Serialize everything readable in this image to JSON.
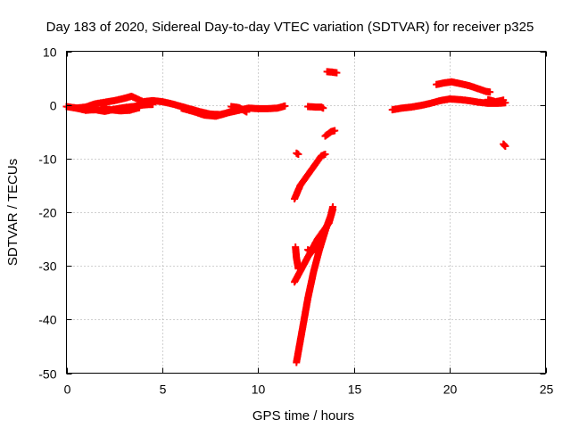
{
  "chart_data": {
    "type": "scatter",
    "title": "Day 183 of 2020, Sidereal Day-to-day VTEC variation (SDTVAR) for receiver p325",
    "xlabel": "GPS time / hours",
    "ylabel": "SDTVAR / TECUs",
    "xlim": [
      0,
      25
    ],
    "ylim": [
      -50,
      10
    ],
    "xticks": [
      0,
      5,
      10,
      15,
      20,
      25
    ],
    "yticks": [
      -50,
      -40,
      -30,
      -20,
      -10,
      0,
      10
    ],
    "grid": true,
    "marker": "+",
    "color": "#ff0000",
    "series": [
      {
        "name": "SDTVAR",
        "tracks": [
          [
            [
              0.0,
              -0.3
            ],
            [
              0.5,
              -0.6
            ],
            [
              1.0,
              -0.4
            ],
            [
              1.5,
              0.2
            ],
            [
              2.0,
              0.5
            ],
            [
              2.5,
              0.8
            ],
            [
              3.0,
              1.2
            ],
            [
              3.4,
              1.6
            ],
            [
              4.0,
              0.6
            ],
            [
              4.5,
              0.8
            ],
            [
              5.0,
              0.6
            ],
            [
              5.5,
              0.2
            ],
            [
              6.0,
              -0.3
            ],
            [
              6.5,
              -0.8
            ],
            [
              7.0,
              -1.3
            ],
            [
              7.5,
              -1.7
            ],
            [
              8.0,
              -1.8
            ],
            [
              8.5,
              -1.4
            ],
            [
              9.0,
              -1.0
            ],
            [
              9.5,
              -0.6
            ],
            [
              10.0,
              -0.7
            ],
            [
              10.5,
              -0.7
            ],
            [
              11.0,
              -0.6
            ],
            [
              11.4,
              -0.2
            ]
          ],
          [
            [
              0.4,
              -0.5
            ],
            [
              1.0,
              -1.0
            ],
            [
              1.5,
              -0.9
            ],
            [
              2.0,
              -1.2
            ],
            [
              2.5,
              -0.8
            ],
            [
              3.0,
              -0.5
            ],
            [
              3.5,
              -0.3
            ],
            [
              4.0,
              0.0
            ],
            [
              4.5,
              0.1
            ]
          ],
          [
            [
              1.8,
              -0.6
            ],
            [
              2.3,
              -0.9
            ],
            [
              2.8,
              -1.1
            ],
            [
              3.3,
              -1.0
            ],
            [
              3.8,
              -0.5
            ]
          ],
          [
            [
              6.0,
              -0.6
            ],
            [
              6.6,
              -1.2
            ],
            [
              7.2,
              -1.9
            ],
            [
              7.8,
              -2.1
            ],
            [
              8.3,
              -1.6
            ],
            [
              8.8,
              -0.9
            ],
            [
              9.3,
              -0.8
            ]
          ],
          [
            [
              8.6,
              -0.3
            ],
            [
              9.0,
              -0.5
            ],
            [
              9.4,
              -1.3
            ]
          ],
          [
            [
              11.9,
              -17.5
            ],
            [
              12.2,
              -15.0
            ],
            [
              12.6,
              -13.0
            ],
            [
              13.0,
              -11.0
            ],
            [
              13.3,
              -9.5
            ],
            [
              13.5,
              -9.2
            ]
          ],
          [
            [
              12.0,
              -9.0
            ],
            [
              12.1,
              -9.2
            ]
          ],
          [
            [
              12.0,
              -48.0
            ],
            [
              12.3,
              -42.0
            ],
            [
              12.6,
              -36.0
            ],
            [
              12.9,
              -31.0
            ],
            [
              13.2,
              -27.0
            ],
            [
              13.5,
              -23.5
            ],
            [
              13.8,
              -20.5
            ],
            [
              13.9,
              -19.0
            ]
          ],
          [
            [
              11.9,
              -33.0
            ],
            [
              12.2,
              -31.0
            ],
            [
              12.5,
              -29.0
            ],
            [
              12.8,
              -27.0
            ],
            [
              13.1,
              -25.0
            ],
            [
              13.4,
              -23.5
            ],
            [
              13.7,
              -22.0
            ],
            [
              13.9,
              -19.5
            ]
          ],
          [
            [
              11.95,
              -26.5
            ],
            [
              12.0,
              -28.5
            ],
            [
              12.1,
              -30.5
            ]
          ],
          [
            [
              12.6,
              -27.0
            ],
            [
              12.8,
              -27.5
            ],
            [
              13.0,
              -26.5
            ]
          ],
          [
            [
              13.5,
              -5.8
            ],
            [
              13.8,
              -5.0
            ],
            [
              14.0,
              -4.8
            ]
          ],
          [
            [
              13.1,
              -26.5
            ],
            [
              13.2,
              -26.0
            ]
          ],
          [
            [
              12.6,
              -0.3
            ],
            [
              13.0,
              -0.4
            ],
            [
              13.3,
              -0.4
            ],
            [
              13.4,
              -0.6
            ]
          ],
          [
            [
              13.6,
              6.2
            ],
            [
              13.9,
              6.1
            ],
            [
              14.1,
              6.0
            ]
          ],
          [
            [
              17.0,
              -0.9
            ],
            [
              17.5,
              -0.6
            ],
            [
              18.0,
              -0.4
            ],
            [
              18.5,
              -0.1
            ],
            [
              19.0,
              0.3
            ],
            [
              19.5,
              0.8
            ],
            [
              20.0,
              1.1
            ],
            [
              20.5,
              1.0
            ],
            [
              21.0,
              0.8
            ],
            [
              21.5,
              0.5
            ],
            [
              22.0,
              0.3
            ],
            [
              22.5,
              0.3
            ],
            [
              22.9,
              0.4
            ]
          ],
          [
            [
              19.3,
              3.8
            ],
            [
              19.7,
              4.1
            ],
            [
              20.1,
              4.3
            ],
            [
              20.5,
              4.0
            ],
            [
              21.0,
              3.6
            ],
            [
              21.5,
              3.0
            ],
            [
              21.9,
              2.5
            ],
            [
              22.1,
              2.4
            ]
          ],
          [
            [
              22.0,
              1.0
            ],
            [
              22.4,
              0.6
            ],
            [
              22.8,
              0.9
            ]
          ],
          [
            [
              22.8,
              -7.3
            ],
            [
              22.9,
              -7.7
            ]
          ]
        ]
      }
    ]
  }
}
